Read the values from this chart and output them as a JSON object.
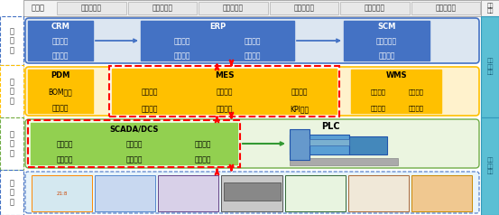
{
  "fig_width": 5.53,
  "fig_height": 2.38,
  "dpi": 100,
  "bg_color": "#ffffff",
  "top_bar_items": [
    "工艺数据库",
    "订单数据库",
    "设备数据库",
    "产品数据库",
    "实时数据库",
    "历史数据库"
  ],
  "top_bar_left_label": "数据库",
  "comm_right_top": "通信\n系统",
  "comm_right_mid1": "有线\n通信\n网络",
  "comm_right_mid2": "无线\n通信\n网络",
  "comm_bg": "#5bbfd4",
  "comm_border": "#3399bb",
  "crm_box": {
    "label": "CRM",
    "sub": [
      "客户管理",
      "市场管理"
    ],
    "color": "#4472c4"
  },
  "erp_box": {
    "label": "ERP",
    "sub": [
      "财务管理",
      "物料管理",
      "采购管理",
      "人事管理"
    ],
    "color": "#4472c4"
  },
  "scm_box": {
    "label": "SCM",
    "sub": [
      "供应商管理",
      "库存管理"
    ],
    "color": "#4472c4"
  },
  "pdm_box": {
    "label": "PDM",
    "sub": [
      "BOM管理",
      "工艺管理"
    ],
    "color": "#ffc000"
  },
  "mes_box": {
    "label": "MES",
    "sub": [
      "计划分解",
      "能源管理",
      "设备管理",
      "质量追溯",
      "生产管理",
      "KPI管理"
    ],
    "color": "#ffc000"
  },
  "wms_box": {
    "label": "WMS",
    "sub": [
      "物料识别",
      "货位管理",
      "物料传输",
      "自动分拣"
    ],
    "color": "#ffc000"
  },
  "scada_box": {
    "label": "SCADA/DCS",
    "sub": [
      "现场监控",
      "数据处理",
      "过程报警",
      "人机界面",
      "设备控制",
      "事故追忆"
    ],
    "color": "#92d050"
  },
  "plc_label": "PLC",
  "arrow_red": "#ff0000",
  "arrow_green": "#339933",
  "arrow_blue": "#4472c4",
  "ent_bg": "#dce6f1",
  "ent_border": "#4472c4",
  "op_bg": "#fff2cc",
  "op_border": "#ffc000",
  "ctrl_bg": "#ebf5e0",
  "ctrl_border": "#70ad47",
  "field_bg": "#e8f4fb",
  "field_border": "#4472c4"
}
